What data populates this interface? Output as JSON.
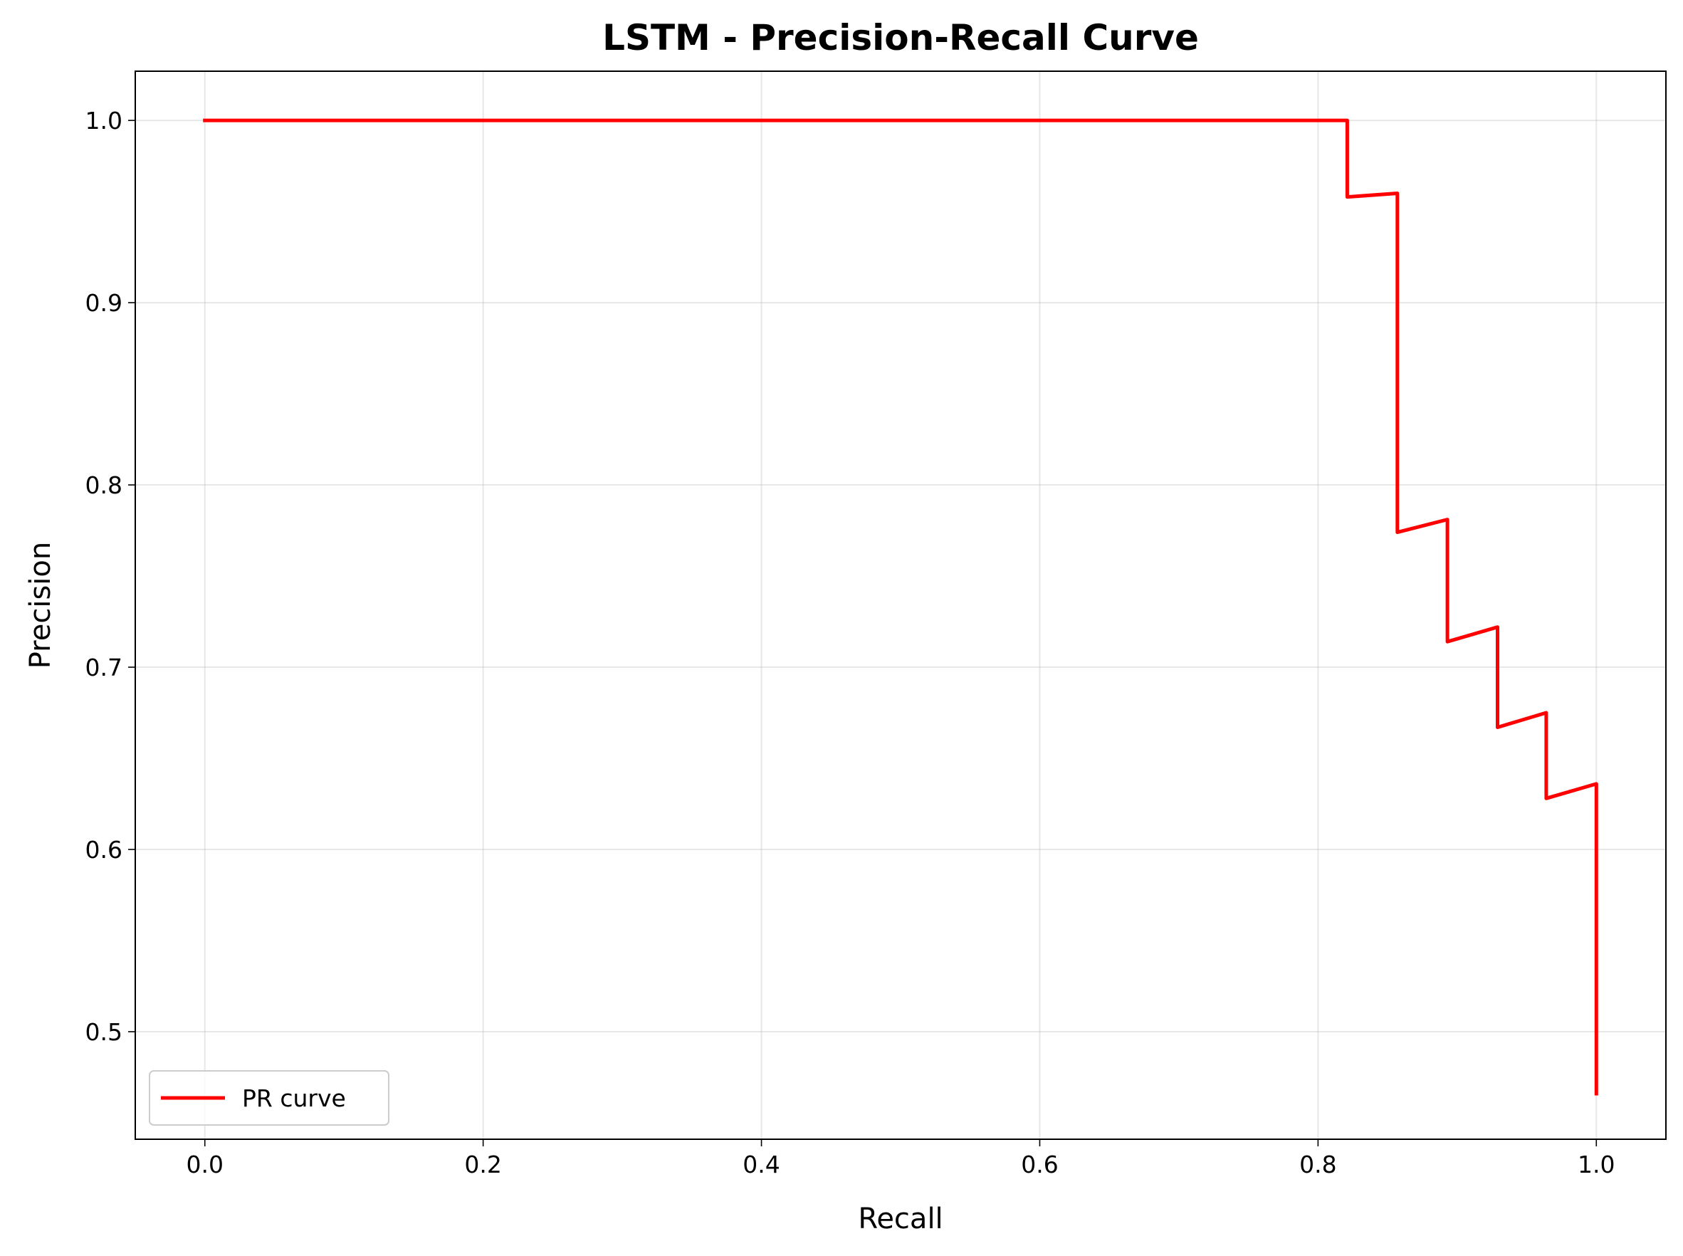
{
  "chart_data": {
    "type": "line",
    "title": "LSTM - Precision-Recall Curve",
    "xlabel": "Recall",
    "ylabel": "Precision",
    "xlim": [
      -0.05,
      1.05
    ],
    "ylim": [
      0.441,
      1.027
    ],
    "xticks": [
      "0.0",
      "0.2",
      "0.4",
      "0.6",
      "0.8",
      "1.0"
    ],
    "yticks": [
      "0.5",
      "0.6",
      "0.7",
      "0.8",
      "0.9",
      "1.0"
    ],
    "grid": true,
    "legend_position": "lower left",
    "series": [
      {
        "name": "PR curve",
        "color": "#ff0000",
        "step": "post",
        "x": [
          0.0,
          0.821,
          0.821,
          0.857,
          0.857,
          0.893,
          0.893,
          0.929,
          0.929,
          0.964,
          0.964,
          1.0,
          1.0
        ],
        "y": [
          1.0,
          1.0,
          0.958,
          0.96,
          0.774,
          0.781,
          0.714,
          0.722,
          0.667,
          0.675,
          0.628,
          0.636,
          0.466
        ]
      }
    ]
  }
}
